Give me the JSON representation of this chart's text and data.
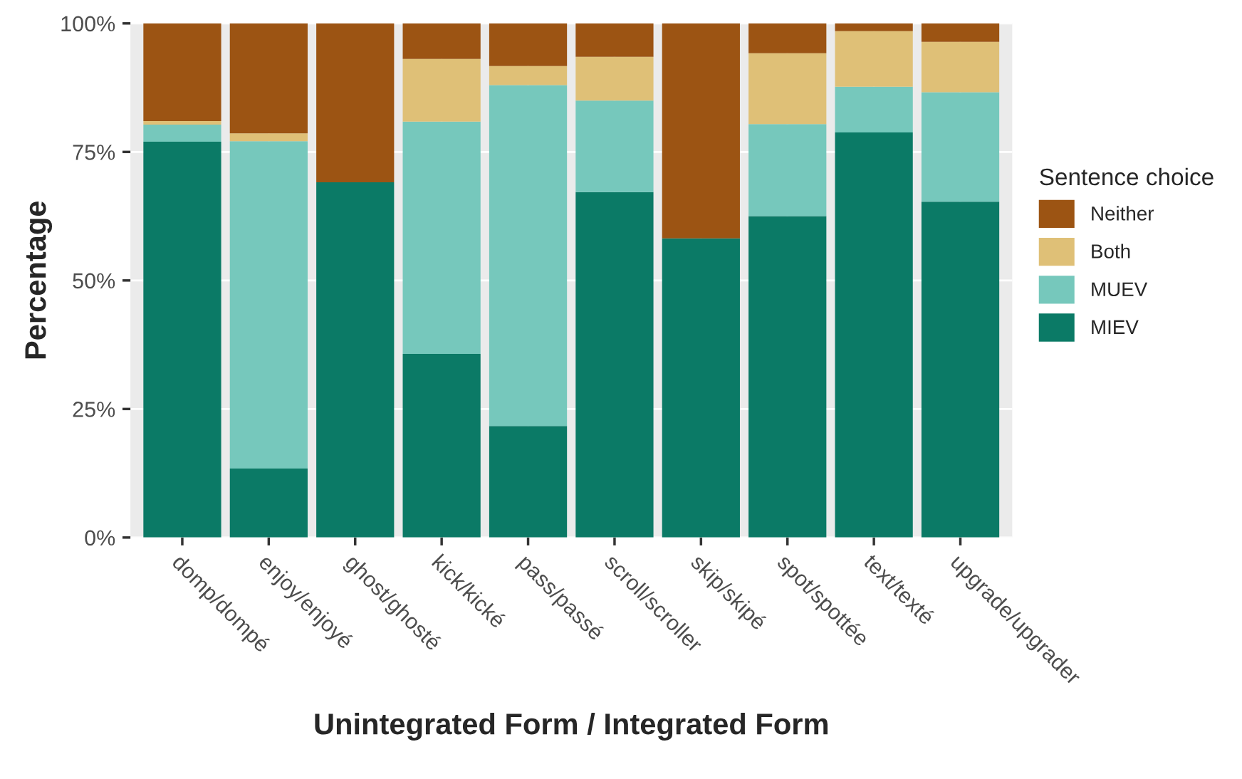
{
  "chart_data": {
    "type": "bar",
    "stacked": true,
    "xlabel": "Unintegrated Form / Integrated Form",
    "ylabel": "Percentage",
    "legend_title": "Sentence choice",
    "legend": "right",
    "grid": true,
    "categories": [
      "domp/dompé",
      "enjoy/enjoyé",
      "ghost/ghosté",
      "kick/kické",
      "pass/passé",
      "scroll/scroller",
      "skip/skipé",
      "spot/spottée",
      "text/texté",
      "upgrade/upgrader"
    ],
    "series": [
      {
        "name": "MIEV",
        "color": "#0b7a66",
        "values": [
          77,
          13.4,
          69.1,
          35.7,
          21.7,
          67.2,
          58.2,
          62.5,
          78.8,
          65.3
        ]
      },
      {
        "name": "MUEV",
        "color": "#76c8bc",
        "values": [
          3.3,
          63.7,
          0,
          45.2,
          66.3,
          17.8,
          0,
          17.9,
          8.9,
          21.3
        ]
      },
      {
        "name": "Both",
        "color": "#dfc077",
        "values": [
          0.7,
          1.5,
          0,
          12.2,
          3.7,
          8.5,
          0,
          13.8,
          10.8,
          9.8
        ]
      },
      {
        "name": "Neither",
        "color": "#9c5413",
        "values": [
          19,
          21.4,
          30.9,
          6.9,
          8.3,
          6.5,
          41.8,
          5.8,
          1.5,
          3.6
        ]
      }
    ],
    "ylim": [
      0,
      100
    ],
    "yticks": [
      {
        "value": 0,
        "label": "0%"
      },
      {
        "value": 25,
        "label": "25%"
      },
      {
        "value": 50,
        "label": "50%"
      },
      {
        "value": 75,
        "label": "75%"
      },
      {
        "value": 100,
        "label": "100%"
      }
    ]
  }
}
